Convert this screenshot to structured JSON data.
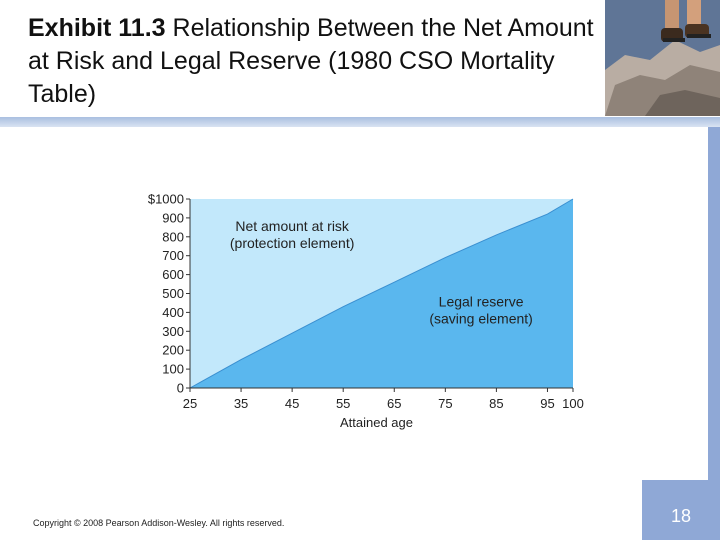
{
  "slide": {
    "title_bold": "Exhibit 11.3",
    "title_rest": " Relationship Between the Net Amount at Risk and Legal Reserve (1980 CSO Mortality Table)",
    "copyright": "Copyright © 2008 Pearson Addison-Wesley. All rights reserved.",
    "page_number": "18",
    "photo_icon": "hiker-photo-icon"
  },
  "chart_data": {
    "type": "area",
    "xlabel": "Attained age",
    "ylabel": "",
    "xlim": [
      25,
      100
    ],
    "ylim": [
      0,
      1000
    ],
    "x_ticks": [
      25,
      35,
      45,
      55,
      65,
      75,
      85,
      95,
      100
    ],
    "y_ticks": [
      0,
      100,
      200,
      300,
      400,
      500,
      600,
      700,
      800,
      900,
      1000
    ],
    "y_tick_labels": [
      "0",
      "100",
      "200",
      "300",
      "400",
      "500",
      "600",
      "700",
      "800",
      "900",
      "$1000"
    ],
    "x": [
      25,
      35,
      45,
      55,
      65,
      75,
      85,
      95,
      100
    ],
    "series": [
      {
        "values": [
          0,
          150,
          290,
          430,
          560,
          690,
          810,
          920,
          1000
        ],
        "color": "#5ab7ee"
      }
    ],
    "upper_color": "#c2e8fb",
    "annotations": [
      {
        "lines": [
          "Net amount at risk",
          "(protection element)"
        ],
        "x": 45,
        "y": 830
      },
      {
        "lines": [
          "Legal reserve",
          "(saving element)"
        ],
        "x": 82,
        "y": 430
      }
    ],
    "grid": false,
    "legend": "none"
  }
}
